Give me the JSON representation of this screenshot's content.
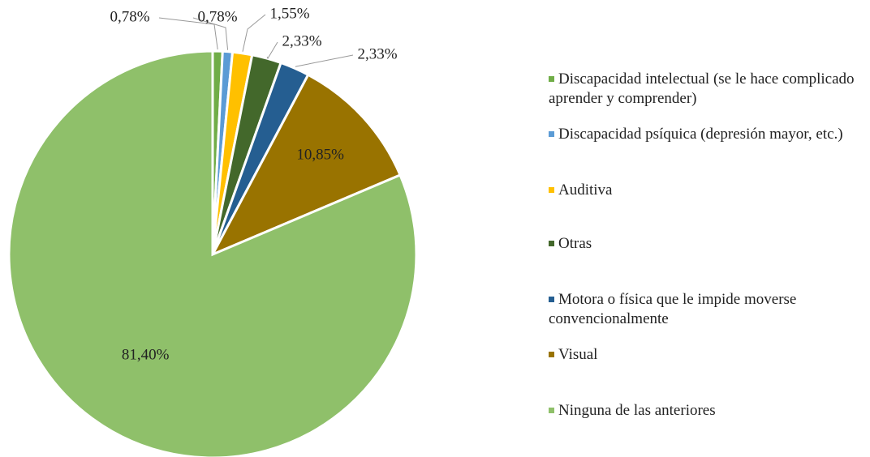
{
  "chart_data": {
    "type": "pie",
    "series": [
      {
        "name": "Discapacidad intelectual (se le hace complicado aprender y comprender)",
        "color": "#70ad47"
      },
      {
        "name": "Discapacidad psíquica (depresión mayor, etc.)",
        "color": "#5b9bd5"
      },
      {
        "name": "Auditiva",
        "color": "#ffc000"
      },
      {
        "name": "Otras",
        "color": "#43682b"
      },
      {
        "name": "Motora o física que le impide moverse convencionalmente",
        "color": "#255e91"
      },
      {
        "name": "Visual",
        "color": "#997300"
      },
      {
        "name": "Ninguna de las anteriores",
        "color": "#8fc06a"
      }
    ],
    "values": [
      0.78,
      0.78,
      1.55,
      2.33,
      2.33,
      10.85,
      81.4
    ],
    "value_labels": [
      "0,78%",
      "0,78%",
      "1,55%",
      "2,33%",
      "2,33%",
      "10,85%",
      "81,40%"
    ],
    "legend": "right"
  }
}
